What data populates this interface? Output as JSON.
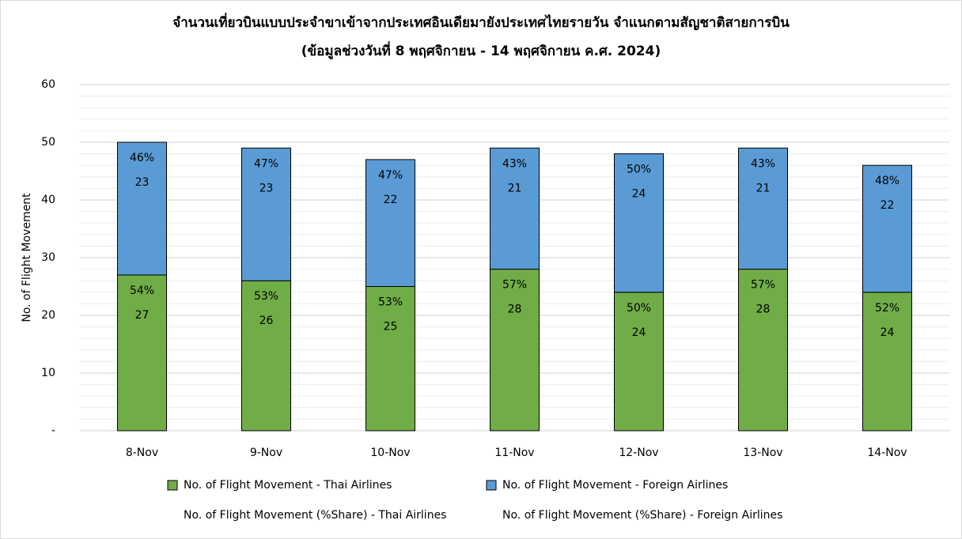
{
  "chart_data": {
    "type": "stacked_bar",
    "title": "จำนวนเที่ยวบินแบบประจำขาเข้าจากประเทศอินเดียมายังประเทศไทยรายวัน  จำแนกตามสัญชาติสายการบิน",
    "subtitle": "(ข้อมูลช่วงวันที่ 8 พฤศจิกายน - 14 พฤศจิกายน ค.ศ. 2024)",
    "y_label": "No. of Flight Movement",
    "categories": [
      "8-Nov",
      "9-Nov",
      "10-Nov",
      "11-Nov",
      "12-Nov",
      "13-Nov",
      "14-Nov"
    ],
    "series": [
      {
        "name": "No. of Flight Movement - Thai Airlines",
        "color": "#70ad47",
        "values": [
          27,
          26,
          25,
          28,
          24,
          28,
          24
        ]
      },
      {
        "name": "No. of Flight Movement - Foreign Airlines",
        "color": "#5b9bd5",
        "values": [
          23,
          23,
          22,
          21,
          24,
          21,
          22
        ]
      }
    ],
    "share_series": [
      {
        "name": "No. of Flight Movement (%Share) - Thai Airlines",
        "values": [
          54,
          53,
          53,
          57,
          50,
          57,
          52
        ],
        "value_labels": [
          "54%",
          "53%",
          "53%",
          "57%",
          "50%",
          "57%",
          "52%"
        ]
      },
      {
        "name": "No. of Flight Movement (%Share) - Foreign Airlines",
        "values": [
          46,
          47,
          47,
          43,
          50,
          43,
          48
        ],
        "value_labels": [
          "46%",
          "47%",
          "47%",
          "43%",
          "50%",
          "43%",
          "48%"
        ]
      }
    ],
    "ylim": [
      0,
      60
    ],
    "yticks": [
      {
        "value": 0,
        "label": "-"
      },
      10,
      20,
      30,
      40,
      50,
      60
    ],
    "grid": true,
    "minor_grid": true
  }
}
